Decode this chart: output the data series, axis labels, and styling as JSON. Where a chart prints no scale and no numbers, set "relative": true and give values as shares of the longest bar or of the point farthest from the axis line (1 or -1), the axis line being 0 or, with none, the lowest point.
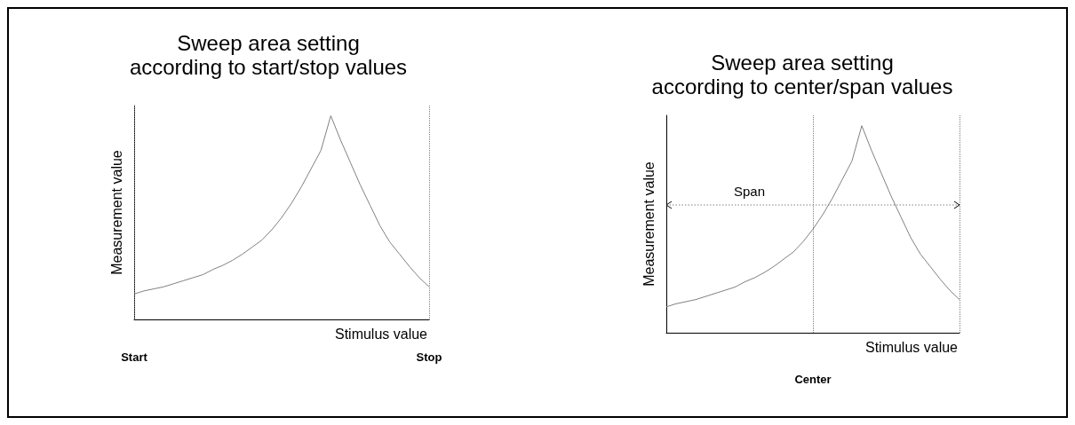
{
  "chart_data": [
    {
      "type": "line",
      "title": "Sweep area setting\naccording to start/stop values",
      "xlabel": "Stimulus value",
      "ylabel": "Measurement value",
      "relative": true,
      "grid": false,
      "marker": "none",
      "line_style": "solid",
      "categories": [
        "Start",
        null,
        null,
        null,
        null,
        null,
        null,
        null,
        null,
        null,
        null,
        null,
        null,
        null,
        null,
        null,
        null,
        null,
        null,
        null,
        null,
        null,
        null,
        null,
        null,
        null,
        null,
        null,
        null,
        null,
        "Stop"
      ],
      "series": [
        {
          "color": "#808080",
          "values": [
            0.125,
            0.14,
            0.15,
            0.16,
            0.175,
            0.19,
            0.205,
            0.22,
            0.245,
            0.265,
            0.29,
            0.32,
            0.355,
            0.39,
            0.44,
            0.5,
            0.57,
            0.65,
            0.74,
            0.83,
            1,
            0.88,
            0.77,
            0.66,
            0.56,
            0.46,
            0.38,
            0.32,
            0.26,
            0.205,
            0.16
          ]
        }
      ],
      "ref_lines": [
        {
          "axis": "x",
          "value": "Start",
          "color": "#808080",
          "line_style": "dotted"
        },
        {
          "axis": "x",
          "value": "Stop",
          "color": "#808080",
          "line_style": "dotted"
        }
      ]
    },
    {
      "type": "line",
      "title": "Sweep area setting\naccording to center/span values",
      "xlabel": "Stimulus value",
      "ylabel": "Measurement value",
      "relative": true,
      "grid": false,
      "marker": "none",
      "line_style": "solid",
      "categories": [
        null,
        null,
        null,
        null,
        null,
        null,
        null,
        null,
        null,
        null,
        null,
        null,
        null,
        null,
        null,
        null,
        null,
        null,
        null,
        null,
        null,
        null,
        null,
        null,
        null,
        null,
        null,
        null,
        null,
        null,
        null
      ],
      "series": [
        {
          "color": "#808080",
          "values": [
            0.125,
            0.14,
            0.15,
            0.16,
            0.175,
            0.19,
            0.205,
            0.22,
            0.245,
            0.265,
            0.29,
            0.32,
            0.355,
            0.39,
            0.44,
            0.5,
            0.57,
            0.65,
            0.74,
            0.83,
            1,
            0.88,
            0.77,
            0.66,
            0.56,
            0.46,
            0.38,
            0.32,
            0.26,
            0.205,
            0.16
          ]
        }
      ],
      "annotations": [
        "Span",
        "Center"
      ]
    }
  ]
}
